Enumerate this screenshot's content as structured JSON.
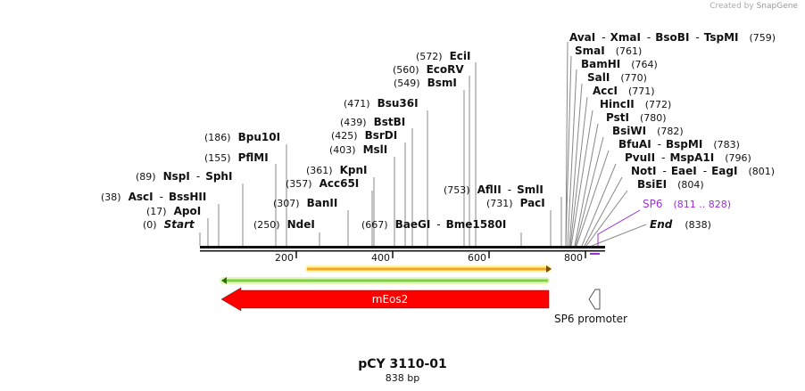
{
  "credit": {
    "text": "Created by",
    "brand": "SnapGene"
  },
  "plasmid": {
    "name": "pCY 3110-01",
    "length": "838 bp"
  },
  "axis": {
    "ticks": [
      "200",
      "400",
      "600",
      "800"
    ]
  },
  "sites": {
    "start": {
      "pos": "(0)",
      "name": "Start"
    },
    "apoi": {
      "pos": "(17)",
      "name": "ApoI"
    },
    "asci": {
      "pos": "(38)",
      "name": "AscI",
      "sep": "-",
      "name2": "BssHII"
    },
    "nspi": {
      "pos": "(89)",
      "name": "NspI",
      "sep": "-",
      "name2": "SphI"
    },
    "pflmi": {
      "pos": "(155)",
      "name": "PflMI"
    },
    "bpu10i": {
      "pos": "(186)",
      "name": "Bpu10I"
    },
    "ndei": {
      "pos": "(250)",
      "name": "NdeI"
    },
    "banii": {
      "pos": "(307)",
      "name": "BanII"
    },
    "acc65i": {
      "pos": "(357)",
      "name": "Acc65I"
    },
    "kpni": {
      "pos": "(361)",
      "name": "KpnI"
    },
    "msli": {
      "pos": "(403)",
      "name": "MslI"
    },
    "bsrdi": {
      "pos": "(425)",
      "name": "BsrDI"
    },
    "bstbi": {
      "pos": "(439)",
      "name": "BstBI"
    },
    "bsu36i": {
      "pos": "(471)",
      "name": "Bsu36I"
    },
    "bsmi": {
      "pos": "(549)",
      "name": "BsmI"
    },
    "ecorv": {
      "pos": "(560)",
      "name": "EcoRV"
    },
    "ecii": {
      "pos": "(572)",
      "name": "EciI"
    },
    "baegi": {
      "pos": "(667)",
      "name": "BaeGI",
      "sep": "-",
      "name2": "Bme1580I"
    },
    "paci": {
      "pos": "(731)",
      "name": "PacI"
    },
    "aflii": {
      "pos": "(753)",
      "name": "AflII",
      "sep": "-",
      "name2": "SmlI"
    },
    "avai": {
      "name": "AvaI",
      "sep": "-",
      "name2": "XmaI",
      "sep2": "-",
      "name3": "BsoBI",
      "sep3": "-",
      "name4": "TspMI",
      "pos": "(759)"
    },
    "smai": {
      "name": "SmaI",
      "pos": "(761)"
    },
    "bamhi": {
      "name": "BamHI",
      "pos": "(764)"
    },
    "sali": {
      "name": "SalI",
      "pos": "(770)"
    },
    "acci": {
      "name": "AccI",
      "pos": "(771)"
    },
    "hincii": {
      "name": "HincII",
      "pos": "(772)"
    },
    "psti": {
      "name": "PstI",
      "pos": "(780)"
    },
    "bsiwi": {
      "name": "BsiWI",
      "pos": "(782)"
    },
    "bfuai": {
      "name": "BfuAI",
      "sep": "-",
      "name2": "BspMI",
      "pos": "(783)"
    },
    "pvuii": {
      "name": "PvuII",
      "sep": "-",
      "name2": "MspA1I",
      "pos": "(796)"
    },
    "noti": {
      "name": "NotI",
      "sep": "-",
      "name2": "EaeI",
      "sep2": "-",
      "name3": "EagI",
      "pos": "(801)"
    },
    "bsiei": {
      "name": "BsiEI",
      "pos": "(804)"
    },
    "sp6": {
      "name": "SP6",
      "pos": "(811 .. 828)"
    },
    "end": {
      "name": "End",
      "pos": "(838)"
    }
  },
  "features": {
    "meos2": {
      "label": "mEos2"
    },
    "sp6_promoter": {
      "label": "SP6 promoter"
    }
  },
  "colors": {
    "meos2": "#ff0000",
    "orf_fill": "#f5a623",
    "orf_glow": "#fff4a3",
    "orf_green": "#7ed04a",
    "primer": "#9b30d9"
  }
}
